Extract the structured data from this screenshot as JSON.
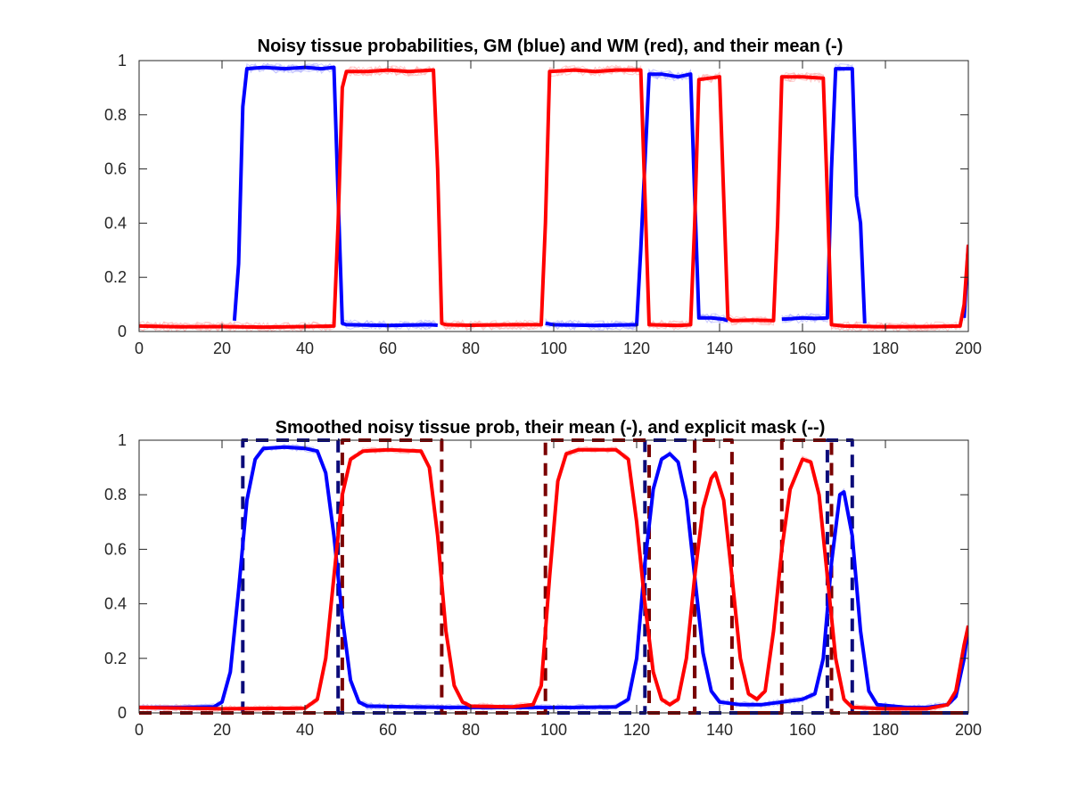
{
  "figure": {
    "background": "#ffffff",
    "colors": {
      "gm": "#0000ff",
      "wm": "#ff0000",
      "gm_faint": "#b8b8ff",
      "wm_faint": "#ffb8b8",
      "gm_mask": "#0b0b7a",
      "wm_mask": "#7a0000"
    }
  },
  "chart_data": [
    {
      "type": "line",
      "title": "Noisy tissue probabilities, GM (blue) and WM (red), and their mean (-)",
      "xlabel": "",
      "ylabel": "",
      "xlim": [
        0,
        200
      ],
      "ylim": [
        0,
        1
      ],
      "xticks": [
        0,
        20,
        40,
        60,
        80,
        100,
        120,
        140,
        160,
        180,
        200
      ],
      "yticks": [
        0,
        0.2,
        0.4,
        0.6,
        0.8,
        1
      ],
      "xtick_labels": [
        "0",
        "20",
        "40",
        "60",
        "80",
        "100",
        "120",
        "140",
        "160",
        "180",
        "200"
      ],
      "ytick_labels": [
        "0",
        "0.2",
        "0.4",
        "0.6",
        "0.8",
        "1"
      ],
      "grid": false,
      "series": [
        {
          "role": "gm-mean",
          "style": "solid-thick",
          "points": [
            [
              23,
              0.04
            ],
            [
              24,
              0.25
            ],
            [
              25,
              0.83
            ],
            [
              26,
              0.97
            ],
            [
              30,
              0.975
            ],
            [
              35,
              0.97
            ],
            [
              40,
              0.975
            ],
            [
              44,
              0.97
            ],
            [
              47,
              0.975
            ],
            [
              48,
              0.5
            ],
            [
              49,
              0.03
            ],
            [
              50,
              0.025
            ],
            [
              60,
              0.022
            ],
            [
              70,
              0.025
            ],
            [
              72,
              0.023
            ]
          ]
        },
        {
          "role": "gm-mean",
          "style": "solid-thick",
          "points": [
            [
              98,
              0.03
            ],
            [
              100,
              0.025
            ],
            [
              110,
              0.022
            ],
            [
              120,
              0.025
            ],
            [
              121,
              0.3
            ],
            [
              123,
              0.95
            ],
            [
              126,
              0.95
            ],
            [
              130,
              0.94
            ],
            [
              133,
              0.95
            ],
            [
              134,
              0.5
            ],
            [
              135,
              0.05
            ],
            [
              138,
              0.05
            ],
            [
              141,
              0.045
            ],
            [
              142,
              0.04
            ]
          ]
        },
        {
          "role": "gm-mean",
          "style": "solid-thick",
          "points": [
            [
              155,
              0.045
            ],
            [
              160,
              0.05
            ],
            [
              163,
              0.048
            ],
            [
              166,
              0.05
            ],
            [
              167,
              0.6
            ],
            [
              168,
              0.97
            ],
            [
              172,
              0.97
            ],
            [
              173,
              0.5
            ],
            [
              174,
              0.4
            ],
            [
              175,
              0.03
            ]
          ]
        },
        {
          "role": "gm-mean",
          "style": "solid-thick",
          "points": [
            [
              199,
              0.05
            ],
            [
              200,
              0.32
            ]
          ]
        },
        {
          "role": "wm-mean",
          "style": "solid-thick",
          "points": [
            [
              0,
              0.02
            ],
            [
              10,
              0.017
            ],
            [
              20,
              0.018
            ],
            [
              30,
              0.016
            ],
            [
              40,
              0.018
            ],
            [
              47,
              0.02
            ],
            [
              48,
              0.4
            ],
            [
              49,
              0.9
            ],
            [
              50,
              0.96
            ],
            [
              55,
              0.96
            ],
            [
              60,
              0.965
            ],
            [
              65,
              0.96
            ],
            [
              71,
              0.965
            ],
            [
              72,
              0.6
            ],
            [
              73,
              0.03
            ],
            [
              74,
              0.025
            ],
            [
              80,
              0.023
            ],
            [
              90,
              0.025
            ],
            [
              97,
              0.025
            ],
            [
              98,
              0.4
            ],
            [
              99,
              0.96
            ],
            [
              105,
              0.965
            ],
            [
              110,
              0.96
            ],
            [
              115,
              0.965
            ],
            [
              121,
              0.965
            ],
            [
              122,
              0.5
            ],
            [
              123,
              0.025
            ],
            [
              130,
              0.022
            ],
            [
              133,
              0.025
            ],
            [
              134,
              0.4
            ],
            [
              135,
              0.93
            ],
            [
              140,
              0.94
            ],
            [
              141,
              0.5
            ],
            [
              142,
              0.05
            ],
            [
              143,
              0.04
            ],
            [
              148,
              0.042
            ],
            [
              153,
              0.04
            ],
            [
              154,
              0.4
            ],
            [
              155,
              0.94
            ],
            [
              160,
              0.94
            ],
            [
              165,
              0.935
            ],
            [
              166,
              0.5
            ],
            [
              167,
              0.025
            ],
            [
              170,
              0.02
            ],
            [
              180,
              0.017
            ],
            [
              190,
              0.018
            ],
            [
              198,
              0.02
            ],
            [
              199,
              0.1
            ],
            [
              200,
              0.32
            ]
          ]
        }
      ]
    },
    {
      "type": "line",
      "title": "Smoothed noisy tissue prob, their mean (-), and explicit mask (--)",
      "xlabel": "",
      "ylabel": "",
      "xlim": [
        0,
        200
      ],
      "ylim": [
        0,
        1
      ],
      "xticks": [
        0,
        20,
        40,
        60,
        80,
        100,
        120,
        140,
        160,
        180,
        200
      ],
      "yticks": [
        0,
        0.2,
        0.4,
        0.6,
        0.8,
        1
      ],
      "xtick_labels": [
        "0",
        "20",
        "40",
        "60",
        "80",
        "100",
        "120",
        "140",
        "160",
        "180",
        "200"
      ],
      "ytick_labels": [
        "0",
        "0.2",
        "0.4",
        "0.6",
        "0.8",
        "1"
      ],
      "grid": false,
      "series": [
        {
          "role": "gm-mask",
          "style": "dashed",
          "points": [
            [
              0,
              0
            ],
            [
              25,
              0
            ],
            [
              25,
              1
            ],
            [
              48,
              1
            ],
            [
              48,
              0
            ],
            [
              122,
              0
            ],
            [
              122,
              1
            ],
            [
              134,
              1
            ],
            [
              134,
              0
            ],
            [
              166,
              0
            ],
            [
              166,
              1
            ],
            [
              172,
              1
            ],
            [
              172,
              0
            ],
            [
              200,
              0
            ]
          ]
        },
        {
          "role": "wm-mask",
          "style": "dashed",
          "points": [
            [
              0,
              0
            ],
            [
              49,
              0
            ],
            [
              49,
              1
            ],
            [
              73,
              1
            ],
            [
              73,
              0
            ],
            [
              98,
              0
            ],
            [
              98,
              1
            ],
            [
              123,
              1
            ],
            [
              123,
              0
            ],
            [
              134,
              0
            ],
            [
              134,
              1
            ],
            [
              143,
              1
            ],
            [
              143,
              0
            ],
            [
              155,
              0
            ],
            [
              155,
              1
            ],
            [
              167,
              1
            ],
            [
              167,
              0
            ],
            [
              200,
              0
            ]
          ]
        },
        {
          "role": "gm-mean",
          "style": "solid-thick",
          "points": [
            [
              0,
              0.02
            ],
            [
              10,
              0.02
            ],
            [
              18,
              0.022
            ],
            [
              20,
              0.04
            ],
            [
              22,
              0.15
            ],
            [
              24,
              0.45
            ],
            [
              26,
              0.78
            ],
            [
              28,
              0.93
            ],
            [
              30,
              0.97
            ],
            [
              35,
              0.975
            ],
            [
              40,
              0.97
            ],
            [
              43,
              0.96
            ],
            [
              45,
              0.88
            ],
            [
              47,
              0.65
            ],
            [
              49,
              0.35
            ],
            [
              51,
              0.12
            ],
            [
              53,
              0.04
            ],
            [
              55,
              0.025
            ],
            [
              65,
              0.022
            ],
            [
              75,
              0.02
            ],
            [
              85,
              0.02
            ],
            [
              95,
              0.02
            ],
            [
              105,
              0.02
            ],
            [
              115,
              0.022
            ],
            [
              118,
              0.05
            ],
            [
              120,
              0.2
            ],
            [
              122,
              0.55
            ],
            [
              124,
              0.82
            ],
            [
              126,
              0.93
            ],
            [
              128,
              0.95
            ],
            [
              130,
              0.92
            ],
            [
              132,
              0.78
            ],
            [
              134,
              0.5
            ],
            [
              136,
              0.22
            ],
            [
              138,
              0.08
            ],
            [
              140,
              0.04
            ],
            [
              145,
              0.03
            ],
            [
              150,
              0.03
            ],
            [
              155,
              0.04
            ],
            [
              160,
              0.05
            ],
            [
              163,
              0.07
            ],
            [
              165,
              0.2
            ],
            [
              167,
              0.55
            ],
            [
              169,
              0.8
            ],
            [
              170,
              0.81
            ],
            [
              172,
              0.65
            ],
            [
              174,
              0.3
            ],
            [
              176,
              0.08
            ],
            [
              178,
              0.03
            ],
            [
              185,
              0.02
            ],
            [
              190,
              0.02
            ],
            [
              195,
              0.03
            ],
            [
              197,
              0.06
            ],
            [
              199,
              0.2
            ],
            [
              200,
              0.32
            ]
          ]
        },
        {
          "role": "wm-mean",
          "style": "solid-thick",
          "points": [
            [
              0,
              0.02
            ],
            [
              20,
              0.015
            ],
            [
              40,
              0.017
            ],
            [
              43,
              0.05
            ],
            [
              45,
              0.2
            ],
            [
              47,
              0.5
            ],
            [
              49,
              0.8
            ],
            [
              51,
              0.93
            ],
            [
              54,
              0.96
            ],
            [
              60,
              0.965
            ],
            [
              68,
              0.96
            ],
            [
              70,
              0.9
            ],
            [
              72,
              0.65
            ],
            [
              74,
              0.3
            ],
            [
              76,
              0.1
            ],
            [
              78,
              0.04
            ],
            [
              80,
              0.025
            ],
            [
              90,
              0.022
            ],
            [
              95,
              0.03
            ],
            [
              97,
              0.1
            ],
            [
              99,
              0.5
            ],
            [
              101,
              0.85
            ],
            [
              103,
              0.95
            ],
            [
              106,
              0.965
            ],
            [
              115,
              0.965
            ],
            [
              118,
              0.93
            ],
            [
              120,
              0.7
            ],
            [
              122,
              0.4
            ],
            [
              124,
              0.15
            ],
            [
              126,
              0.05
            ],
            [
              128,
              0.03
            ],
            [
              130,
              0.05
            ],
            [
              132,
              0.2
            ],
            [
              134,
              0.5
            ],
            [
              136,
              0.75
            ],
            [
              138,
              0.86
            ],
            [
              139,
              0.88
            ],
            [
              141,
              0.78
            ],
            [
              143,
              0.5
            ],
            [
              145,
              0.2
            ],
            [
              147,
              0.07
            ],
            [
              149,
              0.05
            ],
            [
              151,
              0.08
            ],
            [
              153,
              0.3
            ],
            [
              155,
              0.6
            ],
            [
              157,
              0.82
            ],
            [
              160,
              0.93
            ],
            [
              162,
              0.92
            ],
            [
              164,
              0.8
            ],
            [
              166,
              0.5
            ],
            [
              168,
              0.2
            ],
            [
              170,
              0.05
            ],
            [
              172,
              0.02
            ],
            [
              180,
              0.015
            ],
            [
              190,
              0.015
            ],
            [
              195,
              0.03
            ],
            [
              197,
              0.08
            ],
            [
              199,
              0.25
            ],
            [
              200,
              0.32
            ]
          ]
        }
      ]
    }
  ]
}
